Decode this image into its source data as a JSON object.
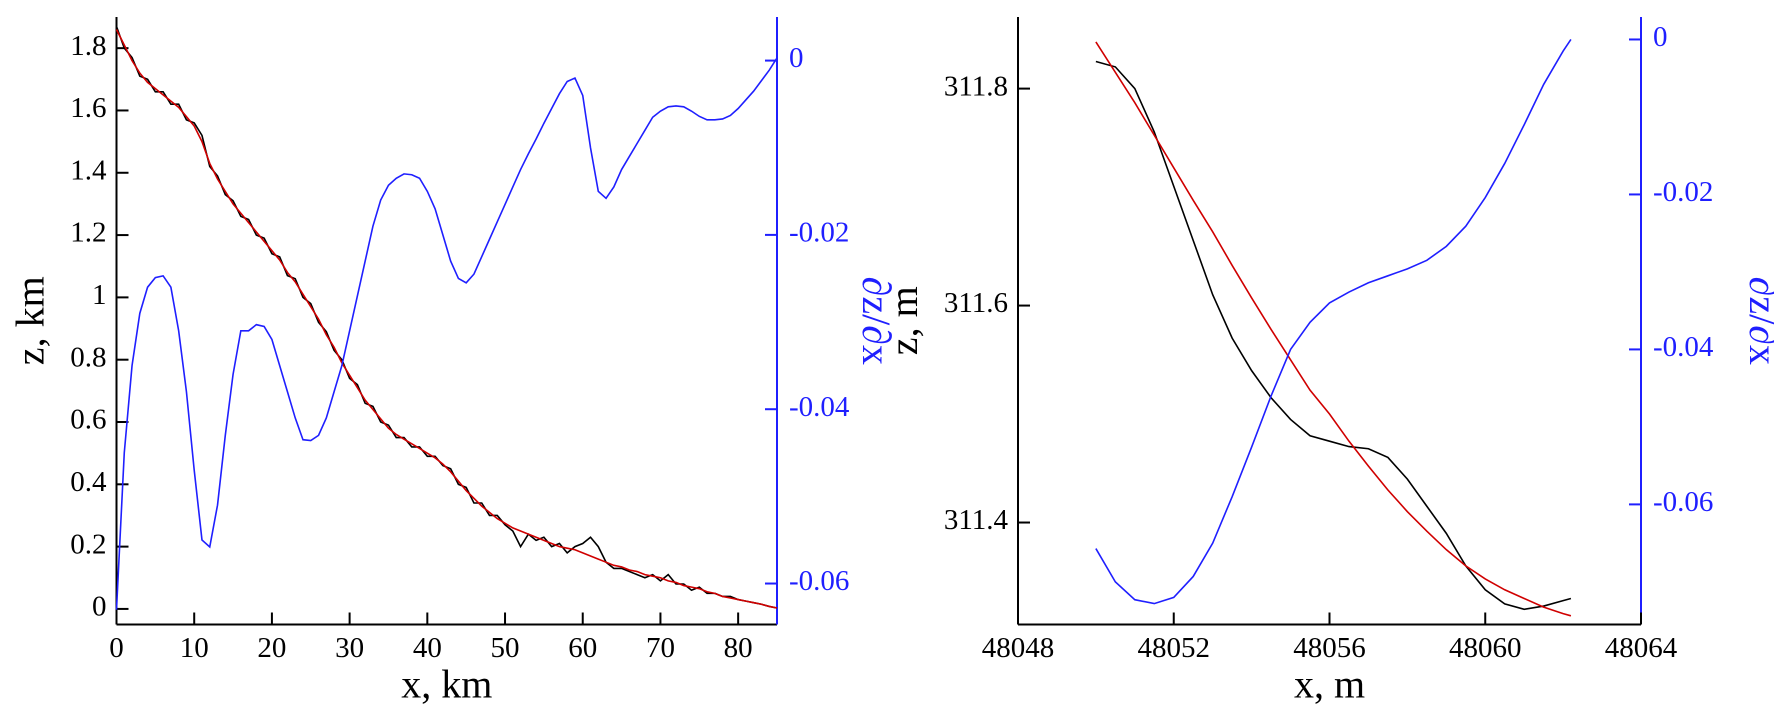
{
  "chart_data": [
    {
      "type": "line",
      "x_label": "x, km",
      "y_label": "z, km",
      "y2_label": "∂z/∂x",
      "xlim": [
        0,
        85
      ],
      "xticks": [
        0,
        10,
        20,
        30,
        40,
        50,
        60,
        70,
        80
      ],
      "ylim": [
        -0.05,
        1.9
      ],
      "yticks": [
        0,
        0.2,
        0.4,
        0.6,
        0.8,
        1,
        1.2,
        1.4,
        1.6,
        1.8
      ],
      "y2lim": [
        -0.0647,
        0.005
      ],
      "y2ticks": [
        -0.06,
        -0.04,
        -0.02,
        0
      ],
      "y2color": "#1f1fff",
      "x": [
        0,
        1,
        2,
        3,
        4,
        5,
        6,
        7,
        8,
        9,
        10,
        11,
        12,
        13,
        14,
        15,
        16,
        17,
        18,
        19,
        20,
        21,
        22,
        23,
        24,
        25,
        26,
        27,
        28,
        29,
        30,
        31,
        32,
        33,
        34,
        35,
        36,
        37,
        38,
        39,
        40,
        41,
        42,
        43,
        44,
        45,
        46,
        47,
        48,
        49,
        50,
        51,
        52,
        53,
        54,
        55,
        56,
        57,
        58,
        59,
        60,
        61,
        62,
        63,
        64,
        65,
        66,
        67,
        68,
        69,
        70,
        71,
        72,
        73,
        74,
        75,
        76,
        77,
        78,
        79,
        80,
        81,
        82,
        83,
        84,
        85
      ],
      "series": [
        {
          "color": "#000000",
          "values": [
            1.87,
            1.8,
            1.77,
            1.71,
            1.7,
            1.66,
            1.66,
            1.62,
            1.62,
            1.57,
            1.56,
            1.52,
            1.42,
            1.39,
            1.33,
            1.31,
            1.26,
            1.25,
            1.2,
            1.19,
            1.14,
            1.13,
            1.07,
            1.06,
            1.0,
            0.98,
            0.92,
            0.89,
            0.83,
            0.8,
            0.74,
            0.72,
            0.66,
            0.65,
            0.6,
            0.59,
            0.55,
            0.55,
            0.52,
            0.52,
            0.49,
            0.49,
            0.46,
            0.45,
            0.4,
            0.39,
            0.34,
            0.34,
            0.3,
            0.3,
            0.27,
            0.25,
            0.2,
            0.24,
            0.22,
            0.23,
            0.2,
            0.21,
            0.18,
            0.2,
            0.21,
            0.23,
            0.2,
            0.15,
            0.13,
            0.13,
            0.12,
            0.11,
            0.1,
            0.11,
            0.09,
            0.11,
            0.08,
            0.08,
            0.06,
            0.07,
            0.05,
            0.05,
            0.04,
            0.04,
            0.03,
            0.025,
            0.02,
            0.015,
            0.008,
            0.003
          ]
        },
        {
          "color": "#d00000",
          "values": [
            1.86,
            1.81,
            1.76,
            1.72,
            1.69,
            1.67,
            1.65,
            1.63,
            1.61,
            1.58,
            1.55,
            1.5,
            1.43,
            1.38,
            1.34,
            1.3,
            1.27,
            1.24,
            1.21,
            1.18,
            1.15,
            1.12,
            1.08,
            1.05,
            1.01,
            0.97,
            0.93,
            0.88,
            0.84,
            0.79,
            0.75,
            0.71,
            0.67,
            0.64,
            0.61,
            0.58,
            0.56,
            0.545,
            0.53,
            0.515,
            0.5,
            0.485,
            0.465,
            0.44,
            0.41,
            0.38,
            0.355,
            0.33,
            0.31,
            0.29,
            0.275,
            0.26,
            0.25,
            0.24,
            0.23,
            0.22,
            0.21,
            0.2,
            0.195,
            0.19,
            0.18,
            0.17,
            0.16,
            0.15,
            0.14,
            0.135,
            0.125,
            0.12,
            0.11,
            0.105,
            0.1,
            0.09,
            0.085,
            0.075,
            0.07,
            0.065,
            0.055,
            0.05,
            0.04,
            0.035,
            0.03,
            0.025,
            0.02,
            0.015,
            0.008,
            0.003
          ]
        },
        {
          "color": "#1f1fff",
          "axis": "y2",
          "values": [
            -0.063,
            -0.045,
            -0.035,
            -0.029,
            -0.026,
            -0.0249,
            -0.0247,
            -0.026,
            -0.031,
            -0.038,
            -0.047,
            -0.055,
            -0.0558,
            -0.051,
            -0.043,
            -0.036,
            -0.031,
            -0.031,
            -0.0303,
            -0.0305,
            -0.032,
            -0.035,
            -0.038,
            -0.041,
            -0.0435,
            -0.0436,
            -0.043,
            -0.041,
            -0.038,
            -0.035,
            -0.031,
            -0.027,
            -0.023,
            -0.019,
            -0.016,
            -0.0143,
            -0.0135,
            -0.013,
            -0.0131,
            -0.0135,
            -0.015,
            -0.017,
            -0.02,
            -0.023,
            -0.025,
            -0.0255,
            -0.0245,
            -0.0225,
            -0.0205,
            -0.0185,
            -0.0165,
            -0.0145,
            -0.0125,
            -0.0107,
            -0.009,
            -0.0072,
            -0.0055,
            -0.0038,
            -0.0024,
            -0.002,
            -0.004,
            -0.01,
            -0.015,
            -0.0158,
            -0.0145,
            -0.0125,
            -0.011,
            -0.0095,
            -0.008,
            -0.0065,
            -0.0058,
            -0.0053,
            -0.0052,
            -0.0053,
            -0.0058,
            -0.0064,
            -0.0068,
            -0.0068,
            -0.0067,
            -0.0063,
            -0.0055,
            -0.0045,
            -0.0035,
            -0.0023,
            -0.0011,
            0.0003
          ]
        }
      ]
    },
    {
      "type": "line",
      "x_label": "x, m",
      "y_label": "z, m",
      "y2_label": "∂z/∂x",
      "xlim": [
        48048,
        48064
      ],
      "xticks": [
        48048,
        48052,
        48056,
        48060,
        48064
      ],
      "ylim": [
        311.306,
        311.866
      ],
      "yticks": [
        311.4,
        311.6,
        311.8
      ],
      "y2lim": [
        -0.0755,
        0.0029
      ],
      "y2ticks": [
        -0.06,
        -0.04,
        -0.02,
        0
      ],
      "y2color": "#1f1fff",
      "x": [
        48050,
        48050.5,
        48051,
        48051.5,
        48052,
        48052.5,
        48053,
        48053.5,
        48054,
        48054.5,
        48055,
        48055.5,
        48056,
        48056.5,
        48057,
        48057.5,
        48058,
        48058.5,
        48059,
        48059.5,
        48060,
        48060.5,
        48061,
        48061.5,
        48062,
        48062.2
      ],
      "series": [
        {
          "color": "#000000",
          "values": [
            311.825,
            311.82,
            311.8,
            311.76,
            311.71,
            311.66,
            311.61,
            311.57,
            311.54,
            311.515,
            311.495,
            311.48,
            311.475,
            311.47,
            311.468,
            311.46,
            311.44,
            311.415,
            311.39,
            311.36,
            311.338,
            311.325,
            311.32,
            311.323,
            311.328,
            311.33
          ]
        },
        {
          "color": "#d00000",
          "values": [
            311.843,
            311.815,
            311.787,
            311.757,
            311.727,
            311.697,
            311.668,
            311.637,
            311.607,
            311.578,
            311.55,
            311.522,
            311.5,
            311.475,
            311.452,
            311.43,
            311.41,
            311.392,
            311.375,
            311.36,
            311.348,
            311.338,
            311.33,
            311.322,
            311.316,
            311.314
          ]
        },
        {
          "color": "#1f1fff",
          "axis": "y2",
          "values": [
            -0.0657,
            -0.07,
            -0.0723,
            -0.0728,
            -0.072,
            -0.0693,
            -0.065,
            -0.059,
            -0.0526,
            -0.046,
            -0.04,
            -0.0365,
            -0.034,
            -0.0326,
            -0.0314,
            -0.0305,
            -0.0296,
            -0.0285,
            -0.0267,
            -0.0241,
            -0.0204,
            -0.016,
            -0.011,
            -0.0058,
            -0.0015,
            0
          ]
        }
      ]
    }
  ]
}
